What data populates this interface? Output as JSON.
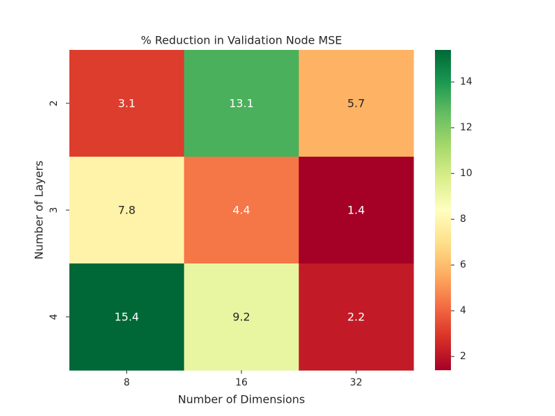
{
  "chart_data": {
    "type": "heatmap",
    "title": "% Reduction in Validation Node MSE",
    "xlabel": "Number of Dimensions",
    "ylabel": "Number of Layers",
    "x_categories": [
      "8",
      "16",
      "32"
    ],
    "y_categories": [
      "2",
      "3",
      "4"
    ],
    "values": [
      [
        3.1,
        13.1,
        5.7
      ],
      [
        7.8,
        4.4,
        1.4
      ],
      [
        15.4,
        9.2,
        2.2
      ]
    ],
    "value_labels": [
      [
        "3.1",
        "13.1",
        "5.7"
      ],
      [
        "7.8",
        "4.4",
        "1.4"
      ],
      [
        "15.4",
        "9.2",
        "2.2"
      ]
    ],
    "colormap": "RdYlGn",
    "vmin": 1.4,
    "vmax": 15.4,
    "colorbar_ticks": [
      "2",
      "4",
      "6",
      "8",
      "10",
      "12",
      "14"
    ],
    "grid": false
  }
}
